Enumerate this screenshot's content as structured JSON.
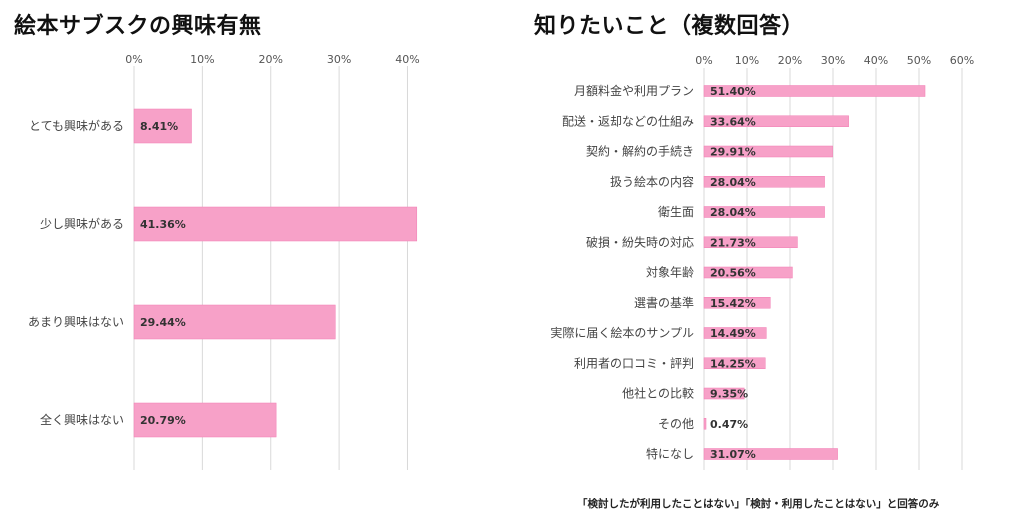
{
  "colors": {
    "bar": "#f7a1c8",
    "bar_edge": "#f27fb4",
    "grid": "#d9d9d9"
  },
  "footnote": "「検討したが利用したことはない」「検討・利用したことはない」と回答のみ",
  "chart_data": [
    {
      "type": "bar",
      "orientation": "horizontal",
      "title": "絵本サブスクの興味有無",
      "categories": [
        "とても興味がある",
        "少し興味がある",
        "あまり興味はない",
        "全く興味はない"
      ],
      "values": [
        8.41,
        41.36,
        29.44,
        20.79
      ],
      "data_labels": [
        "8.41%",
        "41.36%",
        "29.44%",
        "20.79%"
      ],
      "xlim": [
        0,
        43
      ],
      "ticks": [
        0,
        10,
        20,
        30,
        40
      ],
      "tick_labels": [
        "0%",
        "10%",
        "20%",
        "30%",
        "40%"
      ],
      "xlabel": "",
      "ylabel": "",
      "grid": true
    },
    {
      "type": "bar",
      "orientation": "horizontal",
      "title": "知りたいこと（複数回答）",
      "categories": [
        "月額料金や利用プラン",
        "配送・返却などの仕組み",
        "契約・解約の手続き",
        "扱う絵本の内容",
        "衛生面",
        "破損・紛失時の対応",
        "対象年齢",
        "選書の基準",
        "実際に届く絵本のサンプル",
        "利用者の口コミ・評判",
        "他社との比較",
        "その他",
        "特になし"
      ],
      "values": [
        51.4,
        33.64,
        29.91,
        28.04,
        28.04,
        21.73,
        20.56,
        15.42,
        14.49,
        14.25,
        9.35,
        0.47,
        31.07
      ],
      "data_labels": [
        "51.40%",
        "33.64%",
        "29.91%",
        "28.04%",
        "28.04%",
        "21.73%",
        "20.56%",
        "15.42%",
        "14.49%",
        "14.25%",
        "9.35%",
        "0.47%",
        "31.07%"
      ],
      "xlim": [
        0,
        60
      ],
      "ticks": [
        0,
        10,
        20,
        30,
        40,
        50,
        60
      ],
      "tick_labels": [
        "0%",
        "10%",
        "20%",
        "30%",
        "40%",
        "50%",
        "60%"
      ],
      "xlabel": "",
      "ylabel": "",
      "grid": true
    }
  ]
}
